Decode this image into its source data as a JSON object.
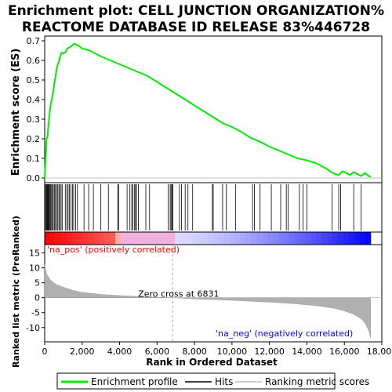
{
  "title": {
    "line1": "Enrichment plot: CELL JUNCTION ORGANIZATION%",
    "line2": "REACTOME DATABASE ID RELEASE 83%446728"
  },
  "colors": {
    "enrichment_line": "#00ee00",
    "hit_line": "#000000",
    "metric_fill": "#b0b0b0",
    "heat_positive": "#ff0000",
    "heat_negative": "#0000ff",
    "pos_label": "#ff0000",
    "neg_label": "#0000ff"
  },
  "chart_data": {
    "type": "line",
    "top_panel": {
      "ylabel": "Enrichment score (ES)",
      "ylim": [
        0.0,
        0.7
      ],
      "yticks": [
        "0.0",
        "0.1",
        "0.2",
        "0.3",
        "0.4",
        "0.5",
        "0.6",
        "0.7"
      ],
      "series": [
        {
          "name": "Enrichment profile",
          "x": [
            0,
            30,
            100,
            150,
            200,
            250,
            300,
            350,
            400,
            450,
            500,
            550,
            600,
            650,
            700,
            750,
            800,
            900,
            1000,
            1100,
            1200,
            1300,
            1400,
            1500,
            1600,
            1700,
            1800,
            2000,
            2200,
            2400,
            2600,
            2800,
            3000,
            3500,
            4000,
            4500,
            5000,
            5500,
            6000,
            6500,
            7000,
            7500,
            8000,
            8500,
            9000,
            9500,
            10000,
            10500,
            11000,
            11500,
            12000,
            12500,
            13000,
            13500,
            14000,
            14500,
            15000,
            15300,
            15500,
            15700,
            15900,
            16100,
            16300,
            16500,
            16700,
            16900,
            17100,
            17300,
            17400
          ],
          "y": [
            0.0,
            0.06,
            0.2,
            0.21,
            0.27,
            0.32,
            0.36,
            0.39,
            0.41,
            0.44,
            0.47,
            0.5,
            0.53,
            0.56,
            0.58,
            0.59,
            0.61,
            0.64,
            0.635,
            0.64,
            0.66,
            0.665,
            0.67,
            0.68,
            0.685,
            0.68,
            0.675,
            0.66,
            0.655,
            0.65,
            0.64,
            0.63,
            0.62,
            0.6,
            0.58,
            0.56,
            0.54,
            0.52,
            0.49,
            0.46,
            0.43,
            0.4,
            0.37,
            0.34,
            0.31,
            0.28,
            0.26,
            0.235,
            0.205,
            0.185,
            0.16,
            0.14,
            0.12,
            0.1,
            0.09,
            0.075,
            0.05,
            0.03,
            0.02,
            0.015,
            0.035,
            0.025,
            0.015,
            0.03,
            0.02,
            0.01,
            0.025,
            0.01,
            0.005
          ]
        }
      ]
    },
    "hits": [
      30,
      80,
      110,
      140,
      170,
      200,
      240,
      280,
      320,
      370,
      410,
      460,
      520,
      580,
      630,
      700,
      760,
      820,
      880,
      950,
      1100,
      1180,
      1250,
      1320,
      1400,
      1480,
      1550,
      1650,
      1750,
      2100,
      2350,
      2600,
      3000,
      3400,
      3900,
      3950,
      4400,
      4550,
      4650,
      4700,
      4800,
      4850,
      4900,
      5000,
      5400,
      5600,
      6600,
      6700,
      6750,
      6800,
      6850,
      7200,
      7300,
      7500,
      7650,
      7900,
      8950,
      9000,
      9500,
      9700,
      10200,
      11100,
      11200,
      11500,
      12100,
      12600,
      12900,
      13000,
      13600,
      13800,
      14000,
      15350,
      15700,
      15800,
      16500,
      16900
    ],
    "bottom_panel": {
      "ylabel": "Ranked list metric (PreRanked)",
      "xlabel": "Rank in Ordered Dataset",
      "ylim": [
        -14,
        17
      ],
      "yticks": [
        "15",
        "10",
        "5",
        "0",
        "-5",
        "-10"
      ],
      "xticks": [
        "0",
        "2,000",
        "4,000",
        "6,000",
        "8,000",
        "10,000",
        "12,000",
        "14,000",
        "16,000",
        "18,000"
      ],
      "xlim": [
        0,
        18000
      ],
      "metric_x": [
        0,
        100,
        300,
        600,
        1000,
        1500,
        2000,
        3000,
        4000,
        5000,
        6000,
        6831,
        8000,
        10000,
        12000,
        13500,
        14500,
        15500,
        16000,
        16500,
        16900,
        17100,
        17300,
        17400
      ],
      "metric_y": [
        11,
        8,
        6,
        4.5,
        3.5,
        2.5,
        1.8,
        1.1,
        0.7,
        0.4,
        0.15,
        0.0,
        -0.4,
        -0.9,
        -1.5,
        -2.1,
        -2.7,
        -3.6,
        -4.4,
        -5.6,
        -7.0,
        -8.5,
        -11.0,
        -13.5
      ],
      "zero_cross_label": "Zero cross at 6831",
      "zero_cross": 6831,
      "pos_label": "'na_pos' (positively correlated)",
      "neg_label": "'na_neg' (negatively correlated)"
    },
    "legend": [
      "Enrichment profile",
      "Hits",
      "Ranking metric scores"
    ]
  }
}
